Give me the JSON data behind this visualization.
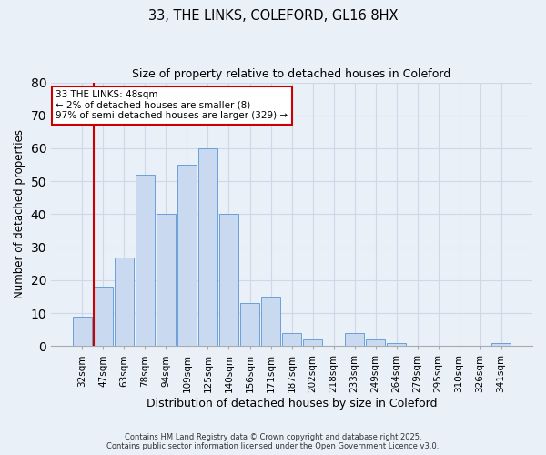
{
  "title1": "33, THE LINKS, COLEFORD, GL16 8HX",
  "title2": "Size of property relative to detached houses in Coleford",
  "xlabel": "Distribution of detached houses by size in Coleford",
  "ylabel": "Number of detached properties",
  "categories": [
    "32sqm",
    "47sqm",
    "63sqm",
    "78sqm",
    "94sqm",
    "109sqm",
    "125sqm",
    "140sqm",
    "156sqm",
    "171sqm",
    "187sqm",
    "202sqm",
    "218sqm",
    "233sqm",
    "249sqm",
    "264sqm",
    "279sqm",
    "295sqm",
    "310sqm",
    "326sqm",
    "341sqm"
  ],
  "values": [
    9,
    18,
    27,
    52,
    40,
    55,
    60,
    40,
    13,
    15,
    4,
    2,
    0,
    4,
    2,
    1,
    0,
    0,
    0,
    0,
    1
  ],
  "bar_color": "#c9d9ef",
  "bar_edge_color": "#6a9fd8",
  "highlight_index": 1,
  "highlight_color": "#cc0000",
  "annotation_title": "33 THE LINKS: 48sqm",
  "annotation_line1": "← 2% of detached houses are smaller (8)",
  "annotation_line2": "97% of semi-detached houses are larger (329) →",
  "ylim": [
    0,
    80
  ],
  "yticks": [
    0,
    10,
    20,
    30,
    40,
    50,
    60,
    70,
    80
  ],
  "grid_color": "#d0d8e8",
  "bg_color": "#eaf0f8",
  "footnote1": "Contains HM Land Registry data © Crown copyright and database right 2025.",
  "footnote2": "Contains public sector information licensed under the Open Government Licence v3.0."
}
